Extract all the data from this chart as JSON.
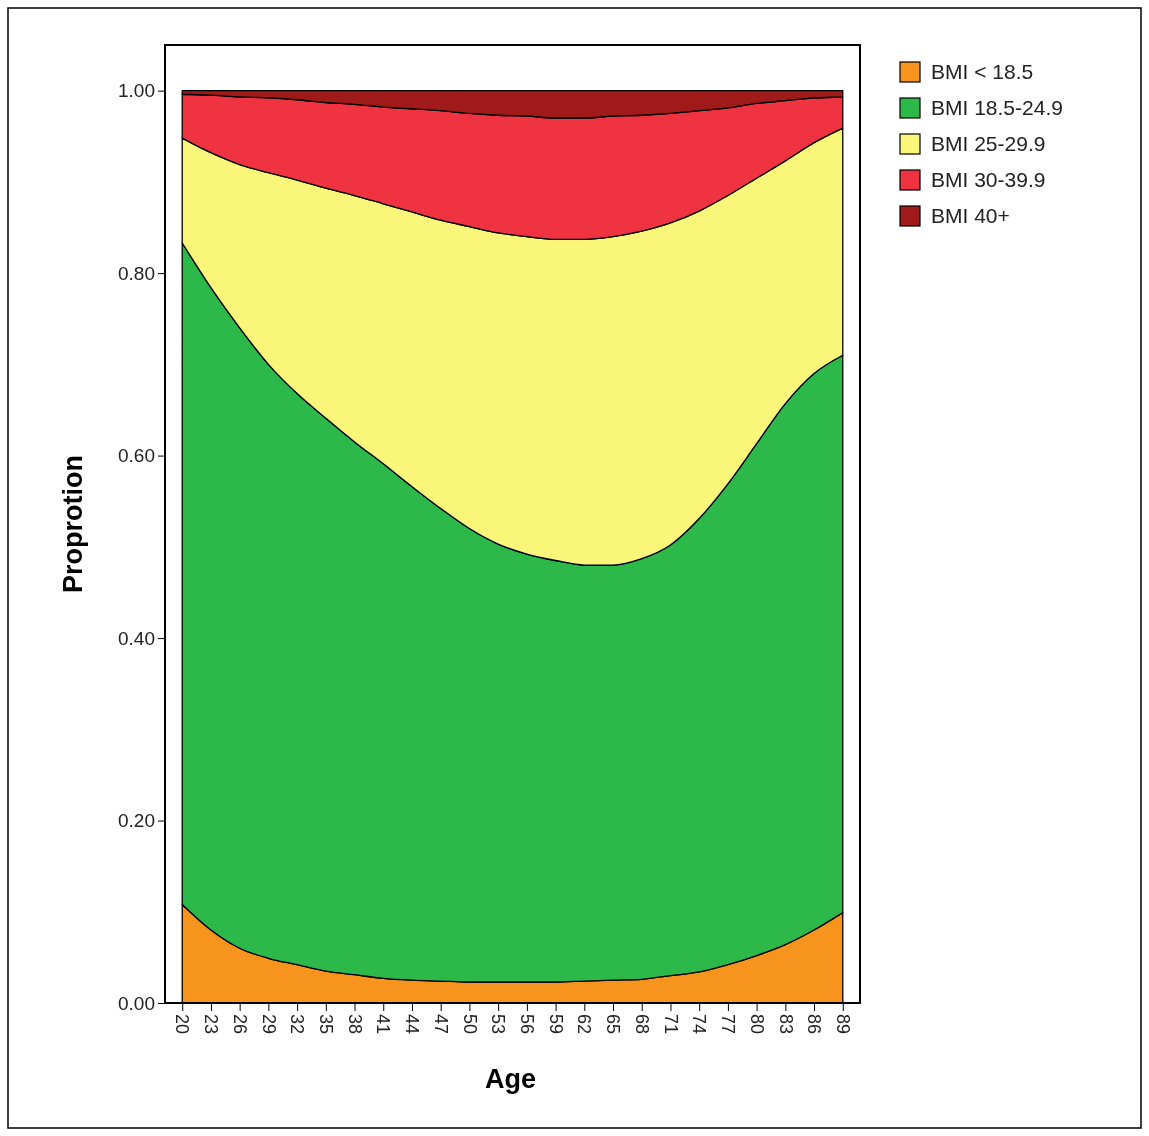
{
  "chart_data": {
    "type": "area",
    "stacked": true,
    "xlabel": "Age",
    "ylabel": "Proprotion",
    "categories": [
      "20",
      "23",
      "26",
      "29",
      "32",
      "35",
      "38",
      "41",
      "44",
      "47",
      "50",
      "53",
      "56",
      "59",
      "62",
      "65",
      "68",
      "71",
      "74",
      "77",
      "80",
      "83",
      "86",
      "89"
    ],
    "ylim": [
      0,
      1.05
    ],
    "yticks": [
      {
        "value": 0,
        "label": "0.00"
      },
      {
        "value": 0.2,
        "label": "0.20"
      },
      {
        "value": 0.4,
        "label": "0.40"
      },
      {
        "value": 0.6,
        "label": "0.60"
      },
      {
        "value": 0.8,
        "label": "0.80"
      },
      {
        "value": 1,
        "label": "1.00"
      }
    ],
    "legend": "top right",
    "grid": false,
    "series": [
      {
        "name": "BMI < 18.5",
        "color": "#f7941d",
        "values": [
          0.108,
          0.08,
          0.06,
          0.049,
          0.042,
          0.035,
          0.031,
          0.027,
          0.025,
          0.024,
          0.023,
          0.023,
          0.023,
          0.023,
          0.024,
          0.025,
          0.026,
          0.03,
          0.034,
          0.042,
          0.052,
          0.064,
          0.08,
          0.099
        ]
      },
      {
        "name": "BMI 18.5-24.9",
        "color": "#2db84a",
        "values": [
          0.725,
          0.704,
          0.68,
          0.651,
          0.626,
          0.606,
          0.584,
          0.564,
          0.541,
          0.518,
          0.497,
          0.48,
          0.469,
          0.462,
          0.456,
          0.455,
          0.461,
          0.472,
          0.497,
          0.527,
          0.561,
          0.593,
          0.61,
          0.611
        ]
      },
      {
        "name": "BMI 25-29.9",
        "color": "#faf67a",
        "values": [
          0.115,
          0.148,
          0.179,
          0.21,
          0.234,
          0.252,
          0.27,
          0.285,
          0.301,
          0.316,
          0.331,
          0.341,
          0.348,
          0.352,
          0.357,
          0.36,
          0.359,
          0.353,
          0.337,
          0.316,
          0.291,
          0.266,
          0.253,
          0.249
        ]
      },
      {
        "name": "BMI 30-39.9",
        "color": "#ef3340",
        "values": [
          0.048,
          0.063,
          0.074,
          0.082,
          0.088,
          0.094,
          0.1,
          0.106,
          0.113,
          0.12,
          0.124,
          0.129,
          0.132,
          0.133,
          0.133,
          0.132,
          0.127,
          0.12,
          0.11,
          0.096,
          0.082,
          0.066,
          0.049,
          0.034
        ]
      },
      {
        "name": "BMI 40+",
        "color": "#a11a1a",
        "values": [
          0.004,
          0.005,
          0.007,
          0.008,
          0.01,
          0.013,
          0.015,
          0.018,
          0.02,
          0.022,
          0.025,
          0.027,
          0.028,
          0.03,
          0.03,
          0.028,
          0.027,
          0.025,
          0.022,
          0.019,
          0.014,
          0.011,
          0.008,
          0.007
        ]
      }
    ]
  }
}
